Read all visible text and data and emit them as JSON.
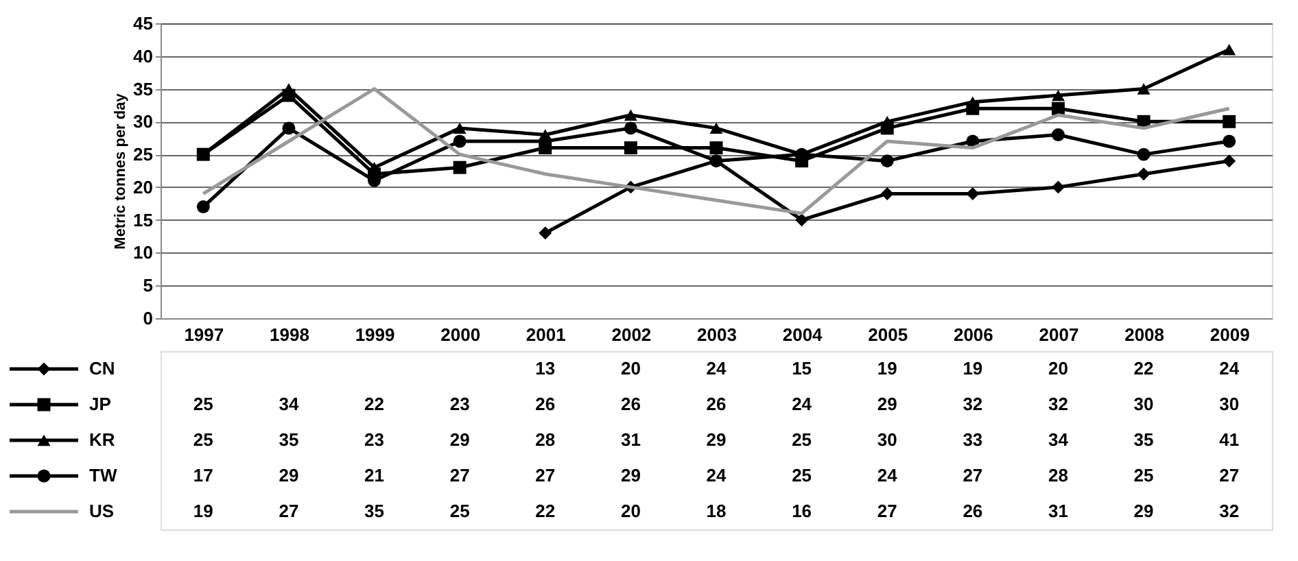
{
  "chart_data": {
    "type": "line",
    "ylabel": "Metric tonnes per day",
    "categories": [
      "1997",
      "1998",
      "1999",
      "2000",
      "2001",
      "2002",
      "2003",
      "2004",
      "2005",
      "2006",
      "2007",
      "2008",
      "2009"
    ],
    "ylim": [
      0,
      45
    ],
    "yticks": [
      0,
      5,
      10,
      15,
      20,
      25,
      30,
      35,
      40,
      45
    ],
    "grid": "y",
    "legend": "bottom",
    "data_labels": true,
    "series": [
      {
        "name": "CN",
        "color": "#000000",
        "marker": "diamond",
        "values": [
          null,
          null,
          null,
          null,
          13,
          20,
          24,
          15,
          19,
          19,
          20,
          22,
          24
        ]
      },
      {
        "name": "JP",
        "color": "#000000",
        "marker": "square",
        "values": [
          25,
          34,
          22,
          23,
          26,
          26,
          26,
          24,
          29,
          32,
          32,
          30,
          30
        ]
      },
      {
        "name": "KR",
        "color": "#000000",
        "marker": "triangle",
        "values": [
          25,
          35,
          23,
          29,
          28,
          31,
          29,
          25,
          30,
          33,
          34,
          35,
          41
        ]
      },
      {
        "name": "TW",
        "color": "#000000",
        "marker": "circle",
        "values": [
          17,
          29,
          21,
          27,
          27,
          29,
          24,
          25,
          24,
          27,
          28,
          25,
          27
        ]
      },
      {
        "name": "US",
        "color": "#999999",
        "marker": "none",
        "values": [
          19,
          27,
          35,
          25,
          22,
          20,
          18,
          16,
          27,
          26,
          31,
          29,
          32
        ]
      }
    ]
  }
}
